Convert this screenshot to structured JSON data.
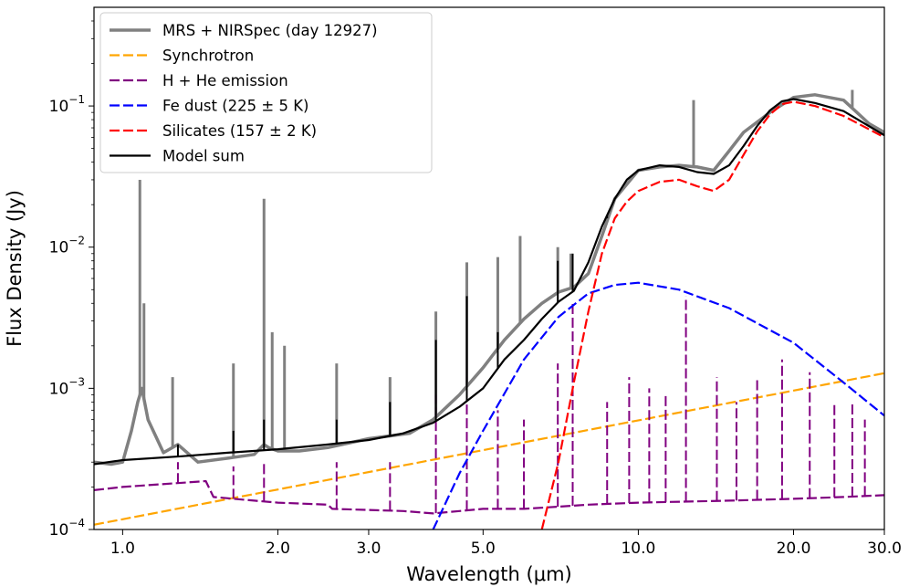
{
  "chart_data": {
    "type": "line",
    "xlabel": "Wavelength (μm)",
    "ylabel": "Flux Density (Jy)",
    "xscale": "log",
    "yscale": "log",
    "xlim": [
      0.88,
      30.0
    ],
    "ylim": [
      0.0001,
      0.5
    ],
    "grid": false,
    "legend_position": "top-left",
    "x_ticks": [
      {
        "value": 1.0,
        "label": "1.0"
      },
      {
        "value": 2.0,
        "label": "2.0"
      },
      {
        "value": 3.0,
        "label": "3.0"
      },
      {
        "value": 5.0,
        "label": "5.0"
      },
      {
        "value": 10.0,
        "label": "10.0"
      },
      {
        "value": 20.0,
        "label": "20.0"
      },
      {
        "value": 30.0,
        "label": "30.0"
      }
    ],
    "y_ticks": [
      {
        "value": 0.0001,
        "base": "10",
        "exp": "−4"
      },
      {
        "value": 0.001,
        "base": "10",
        "exp": "−3"
      },
      {
        "value": 0.01,
        "base": "10",
        "exp": "−2"
      },
      {
        "value": 0.1,
        "base": "10",
        "exp": "−1"
      }
    ],
    "series": [
      {
        "name": "MRS + NIRSpec (day 12927)",
        "color": "#808080",
        "dash": "solid",
        "width": 3.5,
        "x": [
          0.88,
          0.95,
          1.0,
          1.04,
          1.07,
          1.09,
          1.12,
          1.2,
          1.28,
          1.4,
          1.6,
          1.8,
          1.88,
          1.92,
          2.0,
          2.2,
          2.5,
          3.0,
          3.3,
          3.6,
          4.0,
          4.5,
          5.0,
          5.5,
          6.0,
          6.5,
          7.0,
          7.5,
          8.0,
          8.5,
          9.0,
          10.0,
          11.0,
          12.0,
          13.0,
          14.0,
          15.0,
          16.0,
          18.0,
          20.0,
          22.0,
          25.0,
          27.0,
          28.0,
          30.0
        ],
        "y": [
          0.0003,
          0.00029,
          0.0003,
          0.0005,
          0.0008,
          0.001,
          0.0006,
          0.00035,
          0.0004,
          0.0003,
          0.00032,
          0.00034,
          0.0004,
          0.00038,
          0.00036,
          0.00036,
          0.00038,
          0.00044,
          0.00046,
          0.00048,
          0.0006,
          0.0009,
          0.0014,
          0.0022,
          0.0031,
          0.004,
          0.0048,
          0.0052,
          0.0065,
          0.012,
          0.022,
          0.035,
          0.037,
          0.038,
          0.037,
          0.035,
          0.048,
          0.065,
          0.09,
          0.115,
          0.12,
          0.11,
          0.085,
          0.075,
          0.065
        ],
        "lines": [
          {
            "x": 1.08,
            "y": 0.03
          },
          {
            "x": 1.1,
            "y": 0.004
          },
          {
            "x": 1.25,
            "y": 0.0012
          },
          {
            "x": 1.64,
            "y": 0.0015
          },
          {
            "x": 1.88,
            "y": 0.022
          },
          {
            "x": 1.95,
            "y": 0.0025
          },
          {
            "x": 2.06,
            "y": 0.002
          },
          {
            "x": 2.6,
            "y": 0.0015
          },
          {
            "x": 3.3,
            "y": 0.0012
          },
          {
            "x": 4.05,
            "y": 0.0035
          },
          {
            "x": 4.65,
            "y": 0.0078
          },
          {
            "x": 5.34,
            "y": 0.0085
          },
          {
            "x": 5.9,
            "y": 0.012
          },
          {
            "x": 6.98,
            "y": 0.01
          },
          {
            "x": 7.4,
            "y": 0.009
          },
          {
            "x": 12.8,
            "y": 0.11
          },
          {
            "x": 26.0,
            "y": 0.13
          }
        ]
      },
      {
        "name": "Synchrotron",
        "color": "#ffa500",
        "dash": "11,4",
        "width": 2.2,
        "x": [
          0.88,
          30.0
        ],
        "y": [
          0.000108,
          0.00128
        ]
      },
      {
        "name": "H + He emission",
        "color": "#800080",
        "dash": "11,4",
        "width": 2.2,
        "x": [
          0.88,
          1.0,
          1.45,
          1.5,
          1.8,
          2.0,
          2.5,
          2.55,
          3.5,
          4.0,
          4.5,
          5.0,
          6.0,
          7.0,
          8.0,
          10.0,
          15.0,
          20.0,
          25.0,
          30.0
        ],
        "y": [
          0.00019,
          0.0002,
          0.00022,
          0.00017,
          0.00016,
          0.000155,
          0.00015,
          0.00014,
          0.000135,
          0.00013,
          0.000135,
          0.00014,
          0.00014,
          0.000145,
          0.00015,
          0.000155,
          0.00016,
          0.000165,
          0.00017,
          0.000175
        ],
        "lines": [
          {
            "x": 1.28,
            "y": 0.0003
          },
          {
            "x": 1.64,
            "y": 0.00028
          },
          {
            "x": 1.88,
            "y": 0.0003
          },
          {
            "x": 2.6,
            "y": 0.0003
          },
          {
            "x": 3.3,
            "y": 0.0003
          },
          {
            "x": 4.05,
            "y": 0.0009
          },
          {
            "x": 4.65,
            "y": 0.0012
          },
          {
            "x": 5.34,
            "y": 0.0007
          },
          {
            "x": 6.0,
            "y": 0.0006
          },
          {
            "x": 6.98,
            "y": 0.0015
          },
          {
            "x": 7.46,
            "y": 0.004
          },
          {
            "x": 8.7,
            "y": 0.0008
          },
          {
            "x": 9.6,
            "y": 0.0012
          },
          {
            "x": 10.5,
            "y": 0.001
          },
          {
            "x": 11.3,
            "y": 0.0009
          },
          {
            "x": 12.37,
            "y": 0.0045
          },
          {
            "x": 14.2,
            "y": 0.0012
          },
          {
            "x": 15.5,
            "y": 0.0008
          },
          {
            "x": 17.0,
            "y": 0.0012
          },
          {
            "x": 19.0,
            "y": 0.0016
          },
          {
            "x": 21.5,
            "y": 0.0013
          },
          {
            "x": 24.0,
            "y": 0.0008
          },
          {
            "x": 26.0,
            "y": 0.0008
          },
          {
            "x": 27.5,
            "y": 0.0006
          }
        ]
      },
      {
        "name": "Fe dust (225 ± 5 K)",
        "color": "#0000ff",
        "dash": "11,4",
        "width": 2.2,
        "x": [
          4.0,
          4.5,
          5.0,
          6.0,
          7.0,
          8.0,
          9.0,
          10.0,
          12.0,
          15.0,
          20.0,
          25.0,
          30.0
        ],
        "y": [
          0.0001,
          0.00025,
          0.0005,
          0.0016,
          0.0032,
          0.0047,
          0.0054,
          0.0056,
          0.005,
          0.0037,
          0.0021,
          0.0011,
          0.00064
        ]
      },
      {
        "name": "Silicates (157 ± 2 K)",
        "color": "#ff0000",
        "dash": "11,4",
        "width": 2.2,
        "x": [
          6.5,
          7.0,
          7.5,
          8.0,
          8.5,
          9.0,
          9.5,
          10.0,
          11.0,
          12.0,
          13.0,
          14.0,
          15.0,
          16.0,
          17.0,
          18.0,
          19.0,
          20.0,
          22.0,
          25.0,
          30.0
        ],
        "y": [
          0.0001,
          0.0003,
          0.0011,
          0.0035,
          0.009,
          0.016,
          0.021,
          0.025,
          0.029,
          0.03,
          0.027,
          0.025,
          0.03,
          0.045,
          0.066,
          0.087,
          0.103,
          0.107,
          0.1,
          0.085,
          0.06
        ]
      },
      {
        "name": "Model sum",
        "color": "#000000",
        "dash": "solid",
        "width": 2.2,
        "x": [
          0.88,
          1.0,
          1.3,
          1.6,
          2.0,
          2.5,
          3.0,
          3.5,
          4.0,
          4.5,
          5.0,
          5.5,
          6.0,
          6.5,
          7.0,
          7.5,
          8.0,
          8.5,
          9.0,
          9.5,
          10.0,
          11.0,
          12.0,
          13.0,
          14.0,
          15.0,
          16.0,
          17.0,
          18.0,
          19.0,
          20.0,
          22.0,
          25.0,
          30.0
        ],
        "y": [
          0.00029,
          0.00031,
          0.00033,
          0.00035,
          0.00037,
          0.0004,
          0.00043,
          0.00048,
          0.00057,
          0.00074,
          0.001,
          0.0016,
          0.0022,
          0.0031,
          0.0041,
          0.0049,
          0.0078,
          0.014,
          0.022,
          0.03,
          0.035,
          0.038,
          0.037,
          0.034,
          0.033,
          0.038,
          0.052,
          0.072,
          0.093,
          0.108,
          0.112,
          0.105,
          0.092,
          0.062
        ],
        "lines": [
          {
            "x": 1.28,
            "y": 0.0004
          },
          {
            "x": 1.64,
            "y": 0.0005
          },
          {
            "x": 1.88,
            "y": 0.0006
          },
          {
            "x": 2.6,
            "y": 0.0006
          },
          {
            "x": 3.3,
            "y": 0.0008
          },
          {
            "x": 4.05,
            "y": 0.0022
          },
          {
            "x": 4.65,
            "y": 0.0045
          },
          {
            "x": 5.34,
            "y": 0.0025
          },
          {
            "x": 6.98,
            "y": 0.008
          },
          {
            "x": 7.46,
            "y": 0.009
          },
          {
            "x": 8.7,
            "y": 0.016
          }
        ]
      }
    ]
  }
}
